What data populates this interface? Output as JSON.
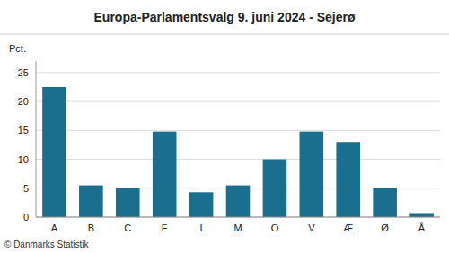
{
  "chart_data": {
    "type": "bar",
    "title": "Europa-Parlamentsvalg 9. juni 2024 - Sejerø",
    "categories": [
      "A",
      "B",
      "C",
      "F",
      "I",
      "M",
      "O",
      "V",
      "Æ",
      "Ø",
      "Å"
    ],
    "values": [
      22.5,
      5.5,
      5.0,
      14.8,
      4.3,
      5.5,
      10.0,
      14.8,
      13.0,
      5.0,
      0.7
    ],
    "color": "#1a6e8e",
    "ylabel": "Pct.",
    "footer": "© Danmarks Statistik",
    "ylim": [
      0,
      27
    ],
    "yticks": [
      0,
      5,
      10,
      15,
      20,
      25
    ],
    "grid": true
  }
}
